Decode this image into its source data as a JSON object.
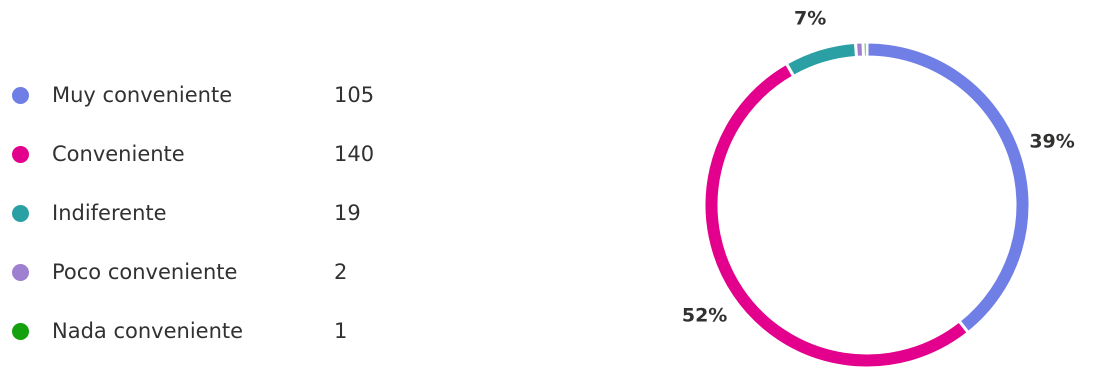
{
  "chart_data": {
    "type": "pie",
    "categories": [
      "Muy conveniente",
      "Conveniente",
      "Indiferente",
      "Poco conveniente",
      "Nada conveniente"
    ],
    "values": [
      105,
      140,
      19,
      2,
      1
    ],
    "colors": [
      "#6f7fe6",
      "#e3008c",
      "#2aa0a4",
      "#9f7fcf",
      "#13a10e"
    ],
    "slice_labels": [
      "39%",
      "52%",
      "7%",
      "",
      ""
    ],
    "legend_placement": "left"
  }
}
